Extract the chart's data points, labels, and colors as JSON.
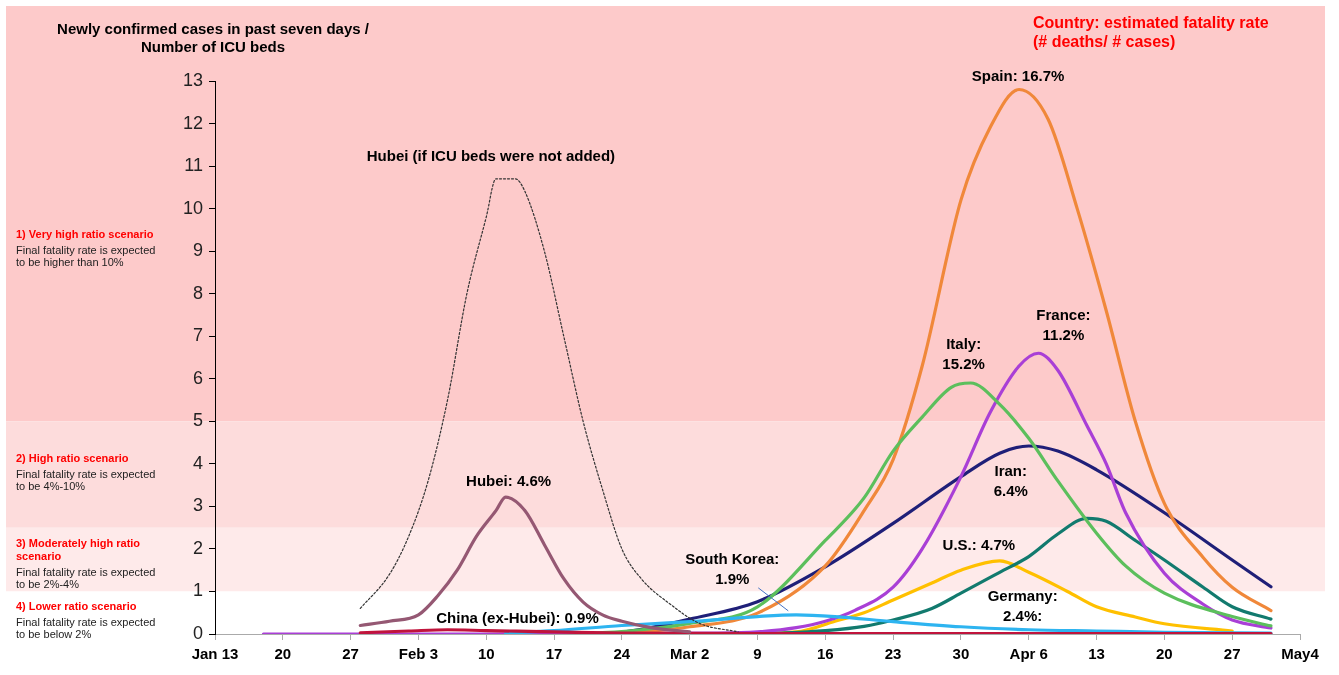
{
  "chart_data": {
    "type": "line",
    "ylabel": "Newly confirmed cases in past seven days / Number of ICU beds",
    "annotations": [
      "Country: estimated fatality rate (# deaths/ # cases)",
      "Final fatality rate is expected to be higher than 10%",
      "Final fatality rate is expected to be 4%-10%",
      "Final fatality rate is expected to be 2%-4%",
      "Final fatality rate is expected to be below 2%"
    ],
    "xlim": [
      "--01-13",
      "--05-04"
    ],
    "xticks": [
      {
        "value": "--01-13",
        "label": "Jan 13"
      },
      {
        "value": "--01-20",
        "label": "20"
      },
      {
        "value": "--01-27",
        "label": "27"
      },
      {
        "value": "--02-03",
        "label": "Feb 3"
      },
      {
        "value": "--02-10",
        "label": "10"
      },
      {
        "value": "--02-17",
        "label": "17"
      },
      {
        "value": "--02-24",
        "label": "24"
      },
      {
        "value": "--03-02",
        "label": "Mar 2"
      },
      {
        "value": "--03-09",
        "label": "9"
      },
      {
        "value": "--03-16",
        "label": "16"
      },
      {
        "value": "--03-23",
        "label": "23"
      },
      {
        "value": "--03-30",
        "label": "30"
      },
      {
        "value": "--04-06",
        "label": "Apr 6"
      },
      {
        "value": "--04-13",
        "label": "13"
      },
      {
        "value": "--04-20",
        "label": "20"
      },
      {
        "value": "--04-27",
        "label": "27"
      },
      {
        "value": "--05-04",
        "label": "May4"
      }
    ],
    "ylim": [
      0,
      13
    ],
    "yticks": [
      0,
      1,
      2,
      3,
      4,
      5,
      6,
      7,
      8,
      9,
      10,
      11,
      12,
      13
    ],
    "grid": false,
    "legend": false,
    "marker": "none",
    "bands": [
      {
        "axis": "y",
        "from": 5,
        "to": 13,
        "label": "1) Very high ratio scenario",
        "color": "#fdcaca"
      },
      {
        "axis": "y",
        "from": 2.5,
        "to": 5,
        "label": "2) High ratio scenario",
        "color": "#fddcdc"
      },
      {
        "axis": "y",
        "from": 1,
        "to": 2.5,
        "label": "3) Moderately high ratio scenario",
        "color": "#feeaea"
      },
      {
        "axis": "y",
        "from": 0,
        "to": 1,
        "label": "4) Lower ratio scenario",
        "color": "#ffffff"
      }
    ],
    "series": [
      {
        "name": "Hubei (if ICU beds were not added)",
        "color": "#333333",
        "line_style": "dotted",
        "x": [
          "--01-28",
          "--01-31",
          "--02-02",
          "--02-04",
          "--02-06",
          "--02-08",
          "--02-10",
          "--02-11",
          "--02-13",
          "--02-14",
          "--02-16",
          "--02-18",
          "--02-20",
          "--02-22",
          "--02-24",
          "--02-26",
          "--02-29",
          "--03-03",
          "--03-07"
        ],
        "values": [
          0.6,
          1.4,
          2.3,
          3.6,
          5.5,
          8.0,
          9.8,
          10.7,
          10.7,
          10.4,
          9.0,
          7.0,
          5.0,
          3.4,
          2.0,
          1.3,
          0.7,
          0.25,
          0.05
        ]
      },
      {
        "name": "Hubei: 4.6%",
        "color": "#955873",
        "x": [
          "--01-28",
          "--01-31",
          "--02-03",
          "--02-05",
          "--02-07",
          "--02-09",
          "--02-11",
          "--02-12",
          "--02-14",
          "--02-16",
          "--02-18",
          "--02-20",
          "--02-22",
          "--02-24",
          "--02-27",
          "--03-02"
        ],
        "values": [
          0.2,
          0.3,
          0.45,
          0.9,
          1.5,
          2.3,
          2.9,
          3.22,
          2.9,
          2.1,
          1.3,
          0.75,
          0.45,
          0.3,
          0.15,
          0.05
        ]
      },
      {
        "name": "China (ex-Hubei): 0.9%",
        "color": "#c0143c",
        "x": [
          "--01-28",
          "--02-02",
          "--02-06",
          "--02-10",
          "--02-17",
          "--02-24",
          "--03-09",
          "--05-01"
        ],
        "values": [
          0.03,
          0.07,
          0.1,
          0.08,
          0.05,
          0.02,
          0.01,
          0.01
        ]
      },
      {
        "name": "South Korea: 1.9%",
        "color": "#2eb4f0",
        "x": [
          "--02-12",
          "--02-17",
          "--02-24",
          "--03-02",
          "--03-09",
          "--03-13",
          "--03-17",
          "--03-23",
          "--03-30",
          "--04-06",
          "--04-13",
          "--04-20",
          "--05-01"
        ],
        "values": [
          0.02,
          0.08,
          0.2,
          0.29,
          0.41,
          0.45,
          0.41,
          0.29,
          0.17,
          0.1,
          0.07,
          0.04,
          0.02
        ]
      },
      {
        "name": "Italy: 15.2%",
        "color": "#5cbf5c",
        "x": [
          "--02-20",
          "--02-26",
          "--03-02",
          "--03-09",
          "--03-16",
          "--03-20",
          "--03-23",
          "--03-26",
          "--03-29",
          "--03-31",
          "--04-03",
          "--04-06",
          "--04-09",
          "--04-13",
          "--04-16",
          "--04-20",
          "--04-27",
          "--05-01"
        ],
        "values": [
          0,
          0.1,
          0.25,
          0.64,
          2.2,
          3.2,
          4.3,
          5.1,
          5.8,
          5.9,
          5.4,
          4.6,
          3.6,
          2.37,
          1.6,
          0.96,
          0.41,
          0.19
        ]
      },
      {
        "name": "Spain: 16.7%",
        "color": "#f0883a",
        "x": [
          "--02-24",
          "--03-02",
          "--03-09",
          "--03-16",
          "--03-20",
          "--03-23",
          "--03-26",
          "--03-30",
          "--04-02",
          "--04-05",
          "--04-08",
          "--04-11",
          "--04-14",
          "--04-17",
          "--04-20",
          "--04-24",
          "--04-27",
          "--05-01"
        ],
        "values": [
          0,
          0.17,
          0.49,
          1.6,
          2.9,
          4.1,
          6.3,
          10.2,
          11.9,
          12.8,
          12.1,
          10.0,
          7.6,
          5.0,
          3.07,
          1.8,
          1.1,
          0.55
        ]
      },
      {
        "name": "France: 11.2%",
        "color": "#a93fd6",
        "x": [
          "--01-18",
          "--02-10",
          "--03-05",
          "--03-09",
          "--03-13",
          "--03-16",
          "--03-19",
          "--03-23",
          "--03-26",
          "--03-30",
          "--04-02",
          "--04-05",
          "--04-07",
          "--04-09",
          "--04-12",
          "--04-14",
          "--04-16",
          "--04-20",
          "--04-24",
          "--04-27",
          "--05-01"
        ],
        "values": [
          0,
          0,
          0.02,
          0.05,
          0.15,
          0.3,
          0.55,
          1.1,
          2.0,
          3.7,
          5.2,
          6.3,
          6.6,
          6.2,
          4.9,
          4.0,
          2.85,
          1.43,
          0.7,
          0.33,
          0.14
        ]
      },
      {
        "name": "Iran: 6.4%",
        "color": "#1f1f78",
        "x": [
          "--02-23",
          "--02-27",
          "--03-02",
          "--03-09",
          "--03-16",
          "--03-23",
          "--03-30",
          "--04-03",
          "--04-06",
          "--04-09",
          "--04-13",
          "--04-20",
          "--04-27",
          "--05-01"
        ],
        "values": [
          0,
          0.15,
          0.35,
          0.76,
          1.58,
          2.6,
          3.7,
          4.25,
          4.42,
          4.3,
          3.86,
          2.85,
          1.74,
          1.11
        ]
      },
      {
        "name": "U.S.: 4.7%",
        "color": "#127a6e",
        "x": [
          "--03-05",
          "--03-12",
          "--03-16",
          "--03-20",
          "--03-23",
          "--03-27",
          "--03-30",
          "--04-03",
          "--04-06",
          "--04-09",
          "--04-12",
          "--04-14",
          "--04-17",
          "--04-20",
          "--04-24",
          "--04-27",
          "--05-01"
        ],
        "values": [
          0,
          0.03,
          0.08,
          0.18,
          0.33,
          0.6,
          0.96,
          1.45,
          1.82,
          2.35,
          2.72,
          2.65,
          2.2,
          1.74,
          1.1,
          0.64,
          0.35
        ]
      },
      {
        "name": "Germany: 2.4%:",
        "color": "#ffc000",
        "x": [
          "--03-05",
          "--03-13",
          "--03-17",
          "--03-20",
          "--03-23",
          "--03-27",
          "--03-30",
          "--04-03",
          "--04-06",
          "--04-10",
          "--04-13",
          "--04-17",
          "--04-20",
          "--04-27"
        ],
        "values": [
          0,
          0.05,
          0.3,
          0.5,
          0.8,
          1.2,
          1.5,
          1.72,
          1.45,
          1.0,
          0.64,
          0.4,
          0.24,
          0.07
        ]
      }
    ]
  }
}
